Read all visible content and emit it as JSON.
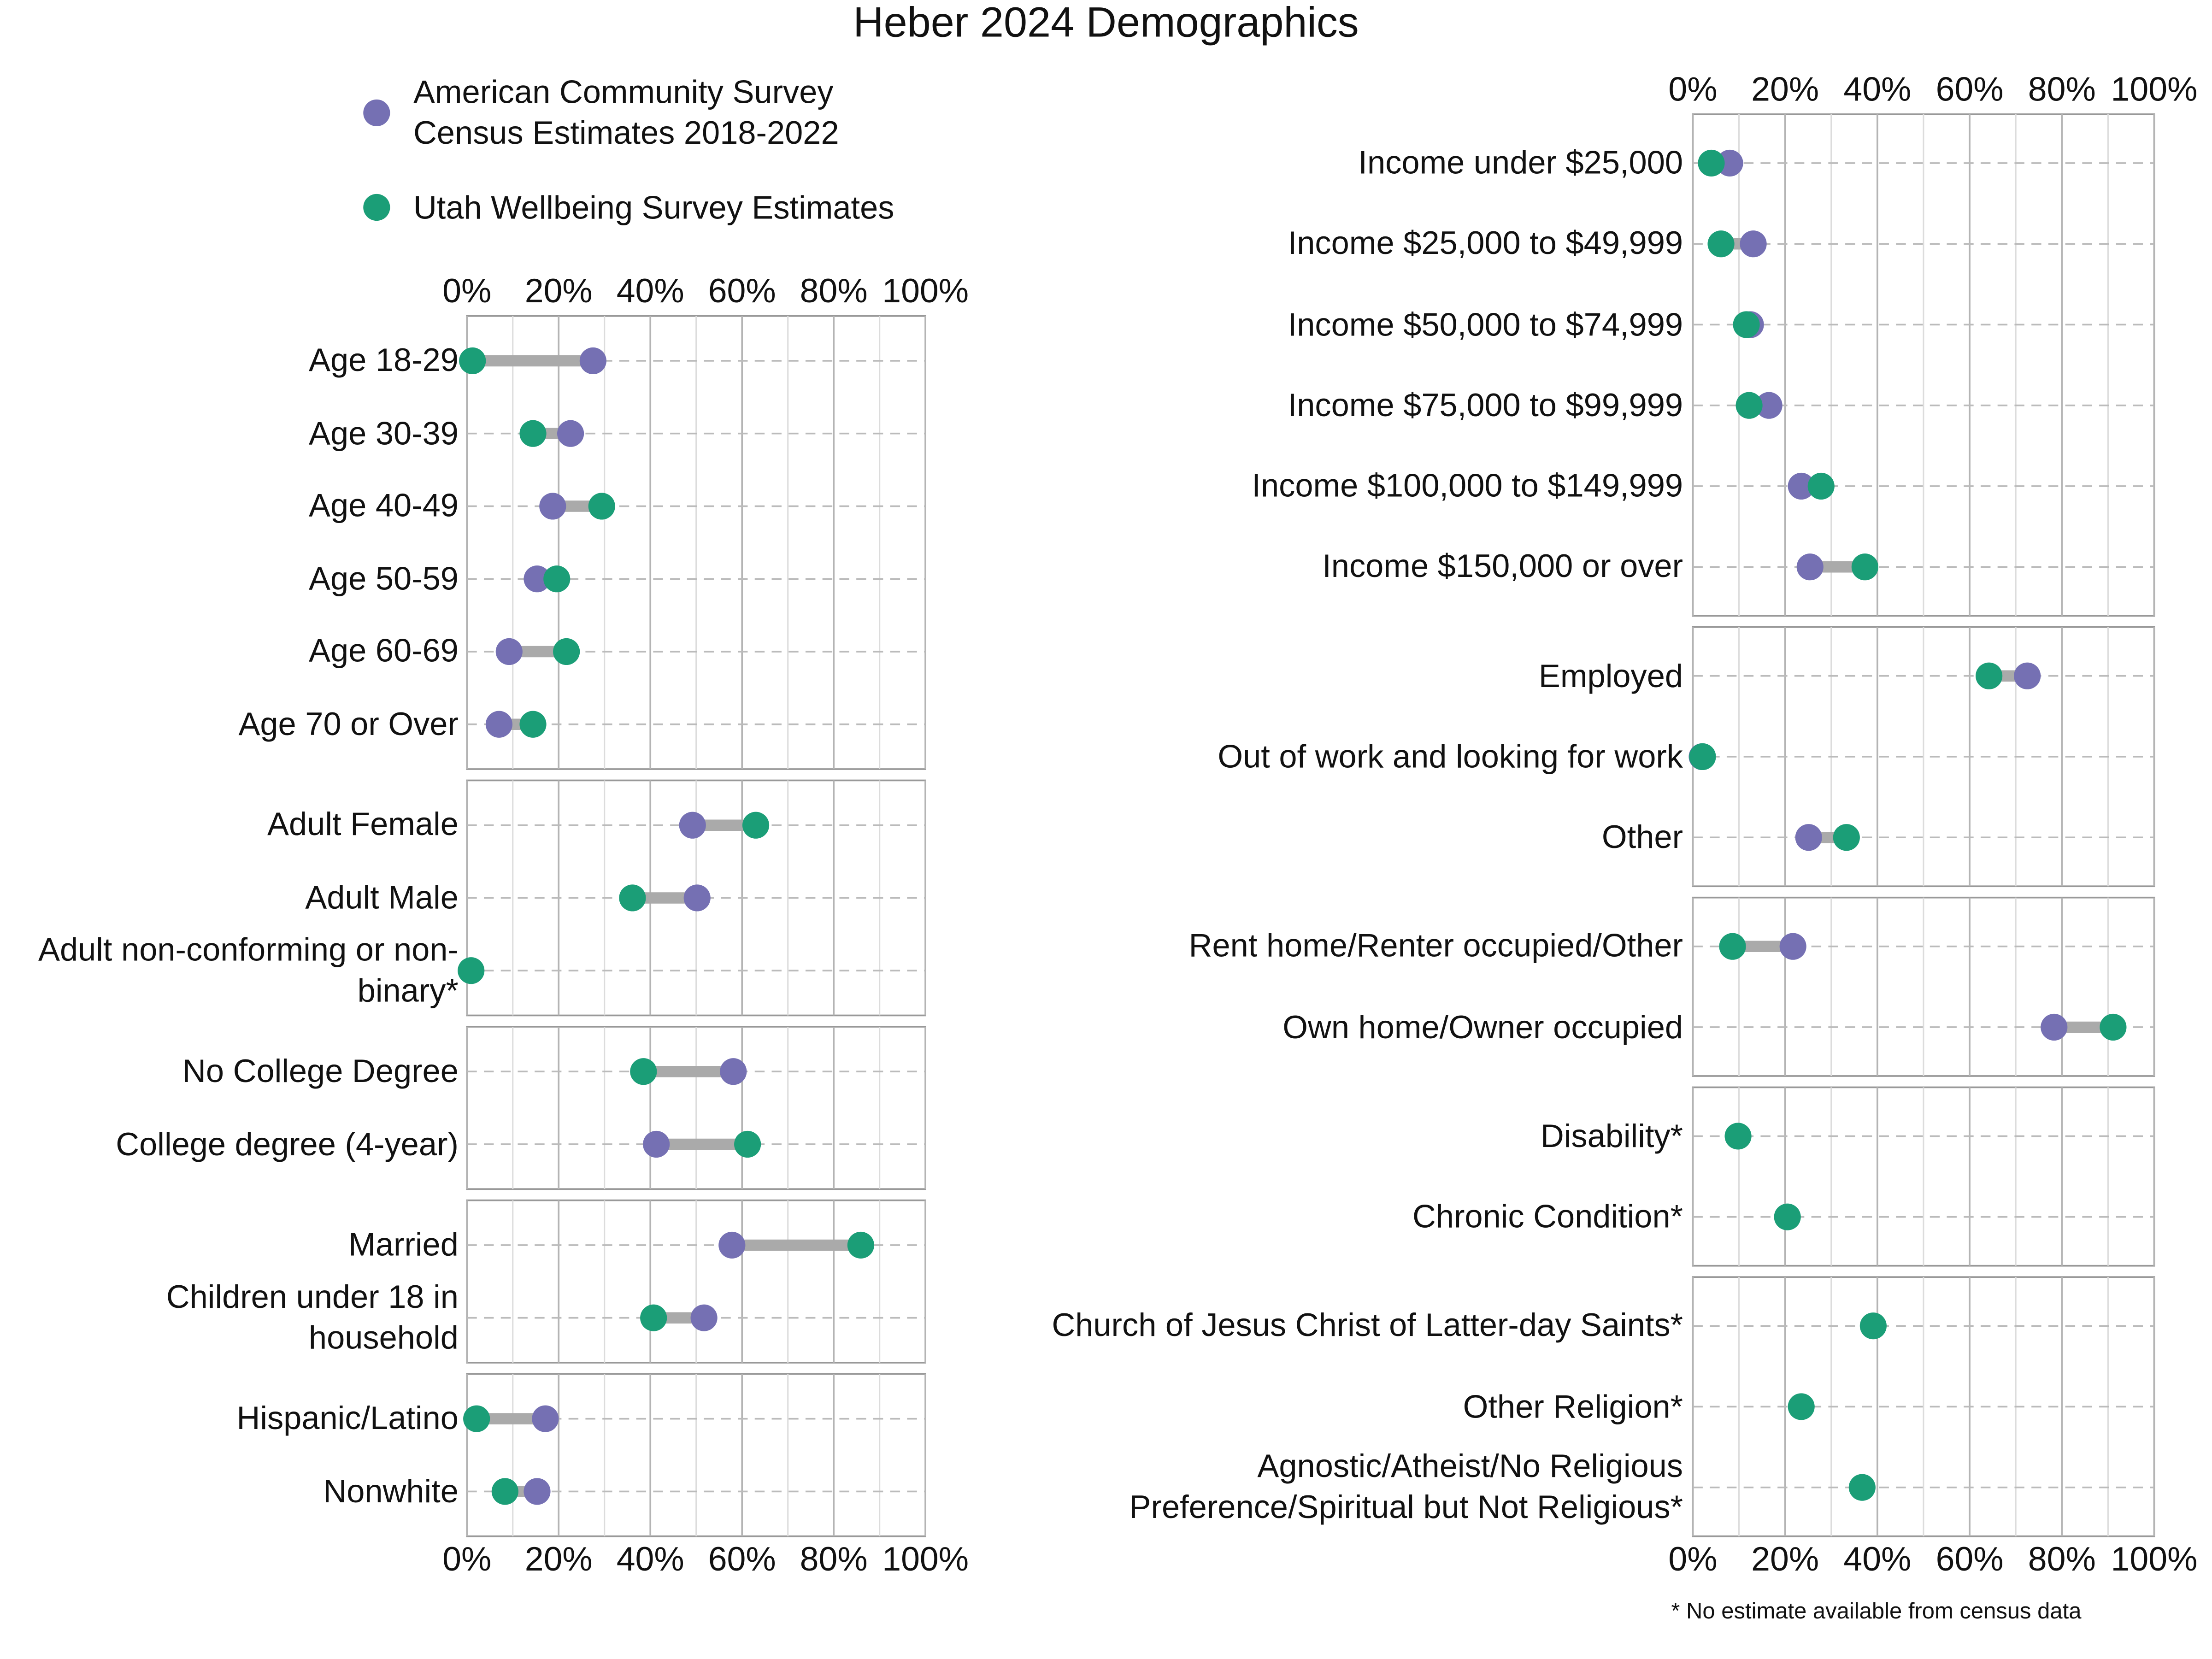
{
  "chart_data": {
    "type": "dumbbell",
    "title": "Heber 2024 Demographics",
    "note": "* No estimate available from census data",
    "series": [
      {
        "name": "American Community Survey Census Estimates 2018-2022",
        "color": "#7570b3"
      },
      {
        "name": "Utah Wellbeing Survey Estimates",
        "color": "#1b9e77"
      }
    ],
    "xlim": [
      0,
      100
    ],
    "xticks": [
      {
        "value": 0,
        "label": "0%"
      },
      {
        "value": 20,
        "label": "20%"
      },
      {
        "value": 40,
        "label": "40%"
      },
      {
        "value": 60,
        "label": "60%"
      },
      {
        "value": 80,
        "label": "80%"
      },
      {
        "value": 100,
        "label": "100%"
      }
    ],
    "xminor": [
      10,
      30,
      50,
      70,
      90
    ],
    "grid": true,
    "columns": [
      {
        "panels": [
          {
            "categories": [
              "Age 18-29",
              "Age 30-39",
              "Age 40-49",
              "Age 50-59",
              "Age 60-69",
              "Age 70 or Over"
            ],
            "series": [
              {
                "values": [
                  27.5,
                  22.6,
                  18.7,
                  15.3,
                  9.2,
                  7.0
                ]
              },
              {
                "values": [
                  1.2,
                  14.4,
                  29.4,
                  19.6,
                  21.7,
                  14.4
                ]
              }
            ]
          },
          {
            "categories": [
              "Adult Female",
              "Adult Male",
              "Adult non-conforming or non-binary*"
            ],
            "series": [
              {
                "values": [
                  49.2,
                  50.2,
                  null
                ]
              },
              {
                "values": [
                  63.0,
                  36.1,
                  0.9
                ]
              }
            ]
          },
          {
            "categories": [
              "No College Degree",
              "College degree (4-year)"
            ],
            "series": [
              {
                "values": [
                  58.1,
                  41.3
                ]
              },
              {
                "values": [
                  38.5,
                  61.2
                ]
              }
            ]
          },
          {
            "categories": [
              "Married",
              "Children under 18 in household"
            ],
            "series": [
              {
                "values": [
                  57.8,
                  51.7
                ]
              },
              {
                "values": [
                  85.9,
                  40.7
                ]
              }
            ]
          },
          {
            "categories": [
              "Hispanic/Latino",
              "Nonwhite"
            ],
            "series": [
              {
                "values": [
                  17.1,
                  15.3
                ]
              },
              {
                "values": [
                  2.1,
                  8.3
                ]
              }
            ]
          }
        ]
      },
      {
        "panels": [
          {
            "categories": [
              "Income under $25,000",
              "Income $25,000 to $49,999",
              "Income $50,000 to $74,999",
              "Income $75,000 to $99,999",
              "Income $100,000 to $149,999",
              "Income $150,000 or over"
            ],
            "series": [
              {
                "values": [
                  8.0,
                  13.1,
                  12.5,
                  16.5,
                  23.5,
                  25.4
                ]
              },
              {
                "values": [
                  4.0,
                  6.1,
                  11.6,
                  12.2,
                  27.8,
                  37.3
                ]
              }
            ]
          },
          {
            "categories": [
              "Employed",
              "Out of work and looking for work",
              "Other"
            ],
            "series": [
              {
                "values": [
                  72.5,
                  2.0,
                  25.1
                ]
              },
              {
                "values": [
                  64.2,
                  2.1,
                  33.3
                ]
              }
            ]
          },
          {
            "categories": [
              "Rent home/Renter occupied/Other",
              "Own home/Owner occupied"
            ],
            "series": [
              {
                "values": [
                  21.7,
                  78.3
                ]
              },
              {
                "values": [
                  8.6,
                  91.1
                ]
              }
            ]
          },
          {
            "categories": [
              "Disability*",
              "Chronic Condition*"
            ],
            "series": [
              {
                "values": [
                  null,
                  null
                ]
              },
              {
                "values": [
                  9.8,
                  20.5
                ]
              }
            ]
          },
          {
            "categories": [
              "Church of Jesus Christ of Latter-day Saints*",
              "Other Religion*",
              "Agnostic/Atheist/No Religious Preference/Spiritual but Not Religious*"
            ],
            "series": [
              {
                "values": [
                  null,
                  null,
                  null
                ]
              },
              {
                "values": [
                  39.1,
                  23.5,
                  36.7
                ]
              }
            ]
          }
        ]
      }
    ]
  }
}
